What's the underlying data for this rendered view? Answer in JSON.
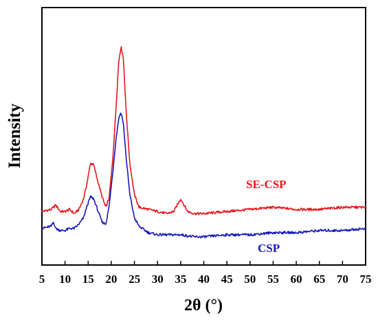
{
  "chart_data": {
    "type": "line",
    "xlabel": "2θ (°)",
    "ylabel": "Intensity",
    "xlim": [
      5,
      75
    ],
    "xticks": [
      5,
      10,
      15,
      20,
      25,
      30,
      35,
      40,
      45,
      50,
      55,
      60,
      65,
      70,
      75
    ],
    "yticks_shown": false,
    "grid": false,
    "legend": "none",
    "series": [
      {
        "name": "SE-CSP",
        "color": "#e8151b",
        "x": [
          5,
          7,
          8,
          9,
          10,
          11,
          12,
          13,
          14,
          14.8,
          15.5,
          16.2,
          17,
          18,
          18.8,
          19.5,
          20.3,
          21,
          21.6,
          22.1,
          22.6,
          23.2,
          24,
          25,
          26,
          28,
          30,
          32,
          33.5,
          34.5,
          35,
          35.5,
          36.5,
          38,
          40,
          45,
          50,
          55,
          60,
          65,
          70,
          75
        ],
        "y": [
          0.22,
          0.23,
          0.25,
          0.22,
          0.22,
          0.23,
          0.21,
          0.23,
          0.28,
          0.36,
          0.45,
          0.44,
          0.37,
          0.29,
          0.24,
          0.28,
          0.46,
          0.7,
          0.93,
          1.0,
          0.95,
          0.7,
          0.45,
          0.3,
          0.24,
          0.23,
          0.22,
          0.21,
          0.22,
          0.26,
          0.28,
          0.26,
          0.22,
          0.21,
          0.21,
          0.22,
          0.23,
          0.24,
          0.23,
          0.23,
          0.24,
          0.24
        ]
      },
      {
        "name": "CSP",
        "color": "#1618b8",
        "x": [
          5,
          7,
          7.5,
          8,
          9,
          10,
          11,
          12,
          13,
          14,
          14.8,
          15.5,
          16.2,
          17,
          18,
          18.8,
          19.5,
          20.3,
          21,
          21.6,
          22.1,
          22.6,
          23.2,
          24,
          25,
          26,
          28,
          30,
          32,
          35,
          38,
          40,
          45,
          50,
          55,
          60,
          65,
          70,
          75
        ],
        "y": [
          0.14,
          0.15,
          0.17,
          0.14,
          0.13,
          0.13,
          0.14,
          0.14,
          0.16,
          0.19,
          0.25,
          0.29,
          0.28,
          0.23,
          0.17,
          0.16,
          0.24,
          0.4,
          0.56,
          0.66,
          0.69,
          0.64,
          0.48,
          0.3,
          0.19,
          0.15,
          0.12,
          0.11,
          0.11,
          0.11,
          0.1,
          0.1,
          0.11,
          0.11,
          0.12,
          0.12,
          0.13,
          0.13,
          0.14
        ]
      }
    ]
  }
}
